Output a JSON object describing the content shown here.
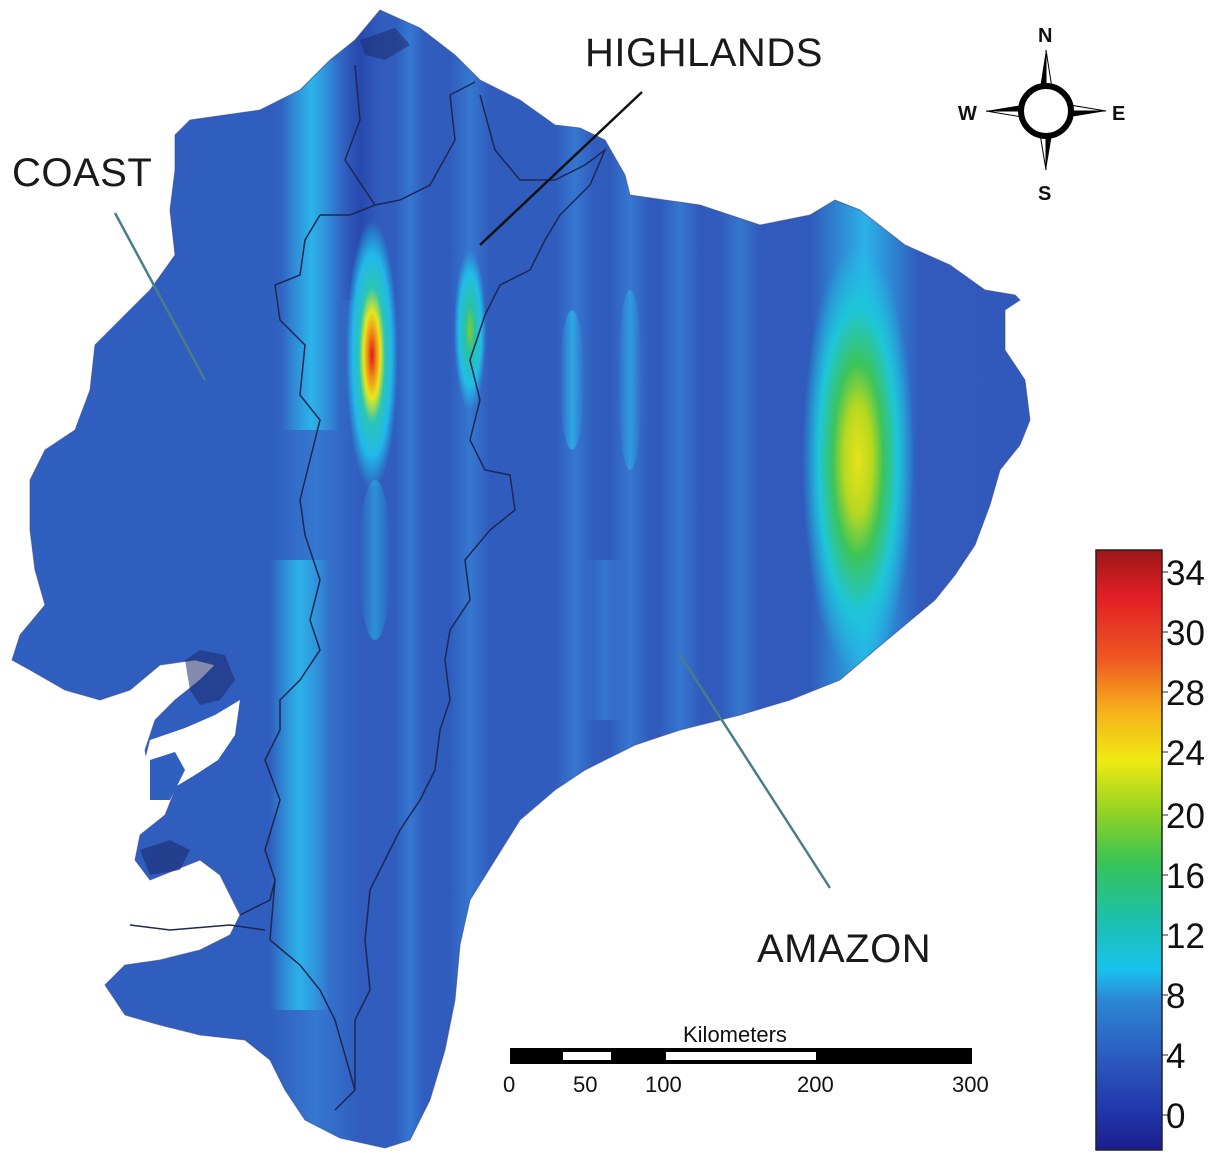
{
  "map": {
    "region_labels": {
      "coast": "COAST",
      "highlands": "HIGHLANDS",
      "amazon": "AMAZON"
    },
    "compass": {
      "n": "N",
      "s": "S",
      "e": "E",
      "w": "W"
    },
    "scale_bar": {
      "title": "Kilometers",
      "ticks": [
        "0",
        "50",
        "100",
        "200",
        "300"
      ]
    },
    "colorbar": {
      "ticks": [
        "34",
        "30",
        "28",
        "24",
        "20",
        "16",
        "12",
        "8",
        "4",
        "0"
      ],
      "range": [
        -2,
        35
      ],
      "colors": [
        "#1f2a9a",
        "#2a56b8",
        "#2a8ad8",
        "#19c4ec",
        "#1fbfa0",
        "#3ec84a",
        "#a8d824",
        "#f2ec10",
        "#f5a81a",
        "#ee4a20",
        "#e01f26",
        "#a01818"
      ]
    },
    "hotspots": [
      {
        "region": "highlands-west",
        "value": 34
      },
      {
        "region": "highlands-east",
        "value": 16
      },
      {
        "region": "amazon-east",
        "value": 24
      }
    ]
  }
}
